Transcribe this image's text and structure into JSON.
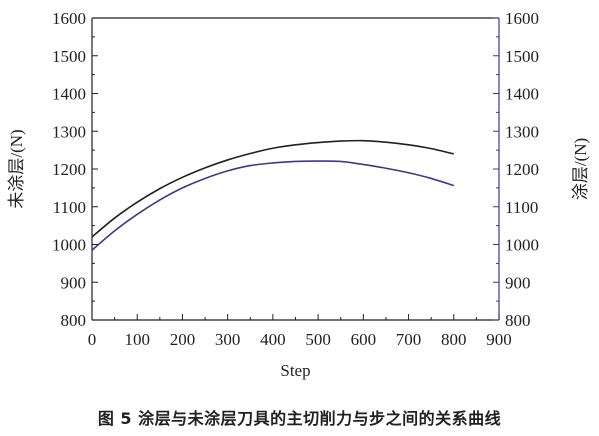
{
  "chart_data": {
    "type": "line",
    "x": [
      0,
      50,
      100,
      150,
      200,
      250,
      300,
      350,
      400,
      450,
      500,
      550,
      600,
      650,
      700,
      750,
      800
    ],
    "series": [
      {
        "name": "未涂层",
        "axis": "left",
        "color": "#231f20",
        "values": [
          1020,
          1070,
          1112,
          1148,
          1178,
          1203,
          1224,
          1241,
          1255,
          1264,
          1270,
          1274,
          1275,
          1271,
          1264,
          1254,
          1240
        ]
      },
      {
        "name": "涂层",
        "axis": "right",
        "color": "#3a3a8c",
        "values": [
          985,
          1036,
          1080,
          1118,
          1150,
          1175,
          1195,
          1209,
          1216,
          1220,
          1221,
          1220,
          1212,
          1202,
          1190,
          1175,
          1156
        ]
      }
    ],
    "xlabel": "Step",
    "ylabel_left": "未涂层/(N)",
    "ylabel_right": "涂层/(N)",
    "xlim": [
      0,
      900
    ],
    "ylim": [
      800,
      1600
    ],
    "x_ticks": [
      "0",
      "100",
      "200",
      "300",
      "400",
      "500",
      "600",
      "700",
      "800",
      "900"
    ],
    "y_ticks": [
      "800",
      "900",
      "1000",
      "1100",
      "1200",
      "1300",
      "1400",
      "1500",
      "1600"
    ],
    "grid": false
  },
  "caption": "图 5  涂层与未涂层刀具的主切削力与步之间的关系曲线"
}
